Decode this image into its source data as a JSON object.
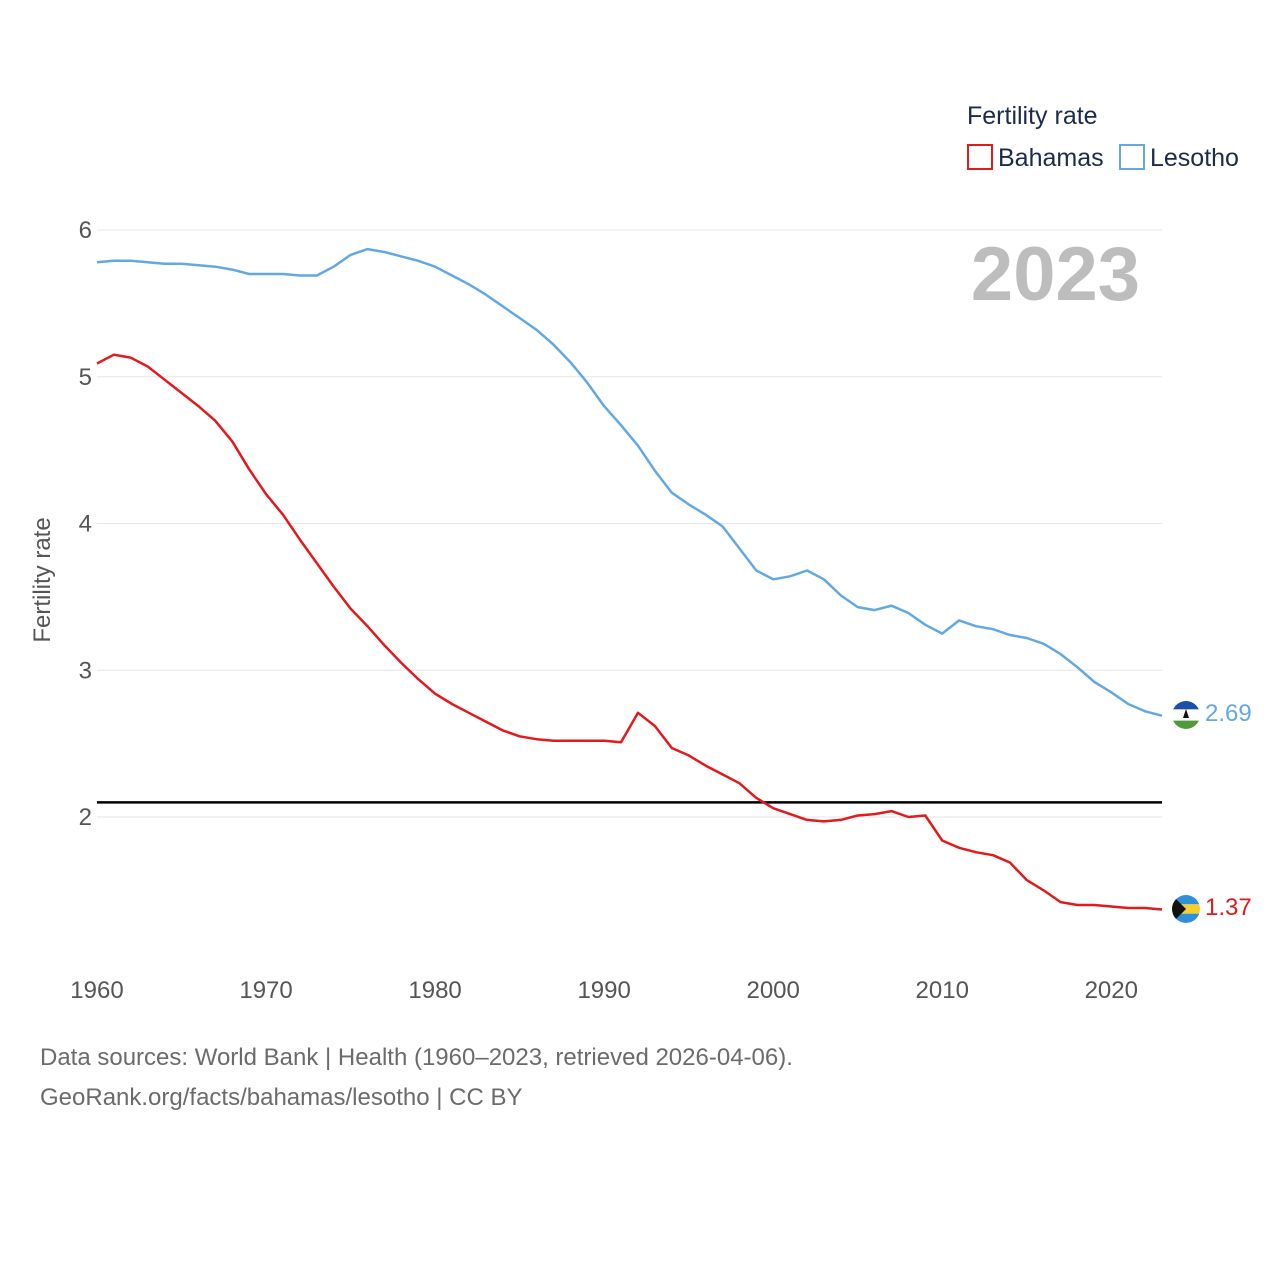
{
  "chart_data": {
    "type": "line",
    "title": "",
    "xlabel": "",
    "ylabel": "Fertility rate",
    "xlim": [
      1960,
      2023
    ],
    "ylim": [
      1.1,
      6.25
    ],
    "x_ticks": [
      1960,
      1970,
      1980,
      1990,
      2000,
      2010,
      2020
    ],
    "y_ticks": [
      2,
      3,
      4,
      5,
      6
    ],
    "reference_line": {
      "value": 2.1,
      "color": "#000000"
    },
    "legend": {
      "title": "Fertility rate",
      "position": "top-right"
    },
    "year_label": "2023",
    "x": [
      1960,
      1961,
      1962,
      1963,
      1964,
      1965,
      1966,
      1967,
      1968,
      1969,
      1970,
      1971,
      1972,
      1973,
      1974,
      1975,
      1976,
      1977,
      1978,
      1979,
      1980,
      1981,
      1982,
      1983,
      1984,
      1985,
      1986,
      1987,
      1988,
      1989,
      1990,
      1991,
      1992,
      1993,
      1994,
      1995,
      1996,
      1997,
      1998,
      1999,
      2000,
      2001,
      2002,
      2003,
      2004,
      2005,
      2006,
      2007,
      2008,
      2009,
      2010,
      2011,
      2012,
      2013,
      2014,
      2015,
      2016,
      2017,
      2018,
      2019,
      2020,
      2021,
      2022,
      2023
    ],
    "series": [
      {
        "name": "Bahamas",
        "color": "#e31a1c",
        "end_label": "1.37",
        "values": [
          5.09,
          5.15,
          5.13,
          5.07,
          4.98,
          4.89,
          4.8,
          4.7,
          4.56,
          4.37,
          4.2,
          4.06,
          3.89,
          3.73,
          3.57,
          3.42,
          3.3,
          3.17,
          3.05,
          2.94,
          2.84,
          2.77,
          2.71,
          2.65,
          2.59,
          2.55,
          2.53,
          2.52,
          2.52,
          2.52,
          2.52,
          2.51,
          2.71,
          2.62,
          2.47,
          2.42,
          2.35,
          2.29,
          2.23,
          2.13,
          2.06,
          2.02,
          1.98,
          1.97,
          1.98,
          2.01,
          2.02,
          2.04,
          2.0,
          2.01,
          1.84,
          1.79,
          1.76,
          1.74,
          1.69,
          1.57,
          1.5,
          1.42,
          1.4,
          1.4,
          1.39,
          1.38,
          1.38,
          1.37
        ]
      },
      {
        "name": "Lesotho",
        "color": "#62a8e5",
        "end_label": "2.69",
        "values": [
          5.78,
          5.79,
          5.79,
          5.78,
          5.77,
          5.77,
          5.76,
          5.75,
          5.73,
          5.7,
          5.7,
          5.7,
          5.69,
          5.69,
          5.75,
          5.83,
          5.87,
          5.85,
          5.82,
          5.79,
          5.75,
          5.69,
          5.63,
          5.56,
          5.48,
          5.4,
          5.32,
          5.22,
          5.1,
          4.96,
          4.8,
          4.67,
          4.53,
          4.36,
          4.21,
          4.13,
          4.06,
          3.98,
          3.83,
          3.68,
          3.62,
          3.64,
          3.68,
          3.62,
          3.51,
          3.43,
          3.41,
          3.44,
          3.39,
          3.31,
          3.25,
          3.34,
          3.3,
          3.28,
          3.24,
          3.22,
          3.18,
          3.11,
          3.02,
          2.92,
          2.85,
          2.77,
          2.72,
          2.69
        ]
      }
    ]
  },
  "footer": {
    "source": "Data sources: World Bank | Health (1960–2023, retrieved 2026-04-06).",
    "credit": "GeoRank.org/facts/bahamas/lesotho | CC BY"
  }
}
